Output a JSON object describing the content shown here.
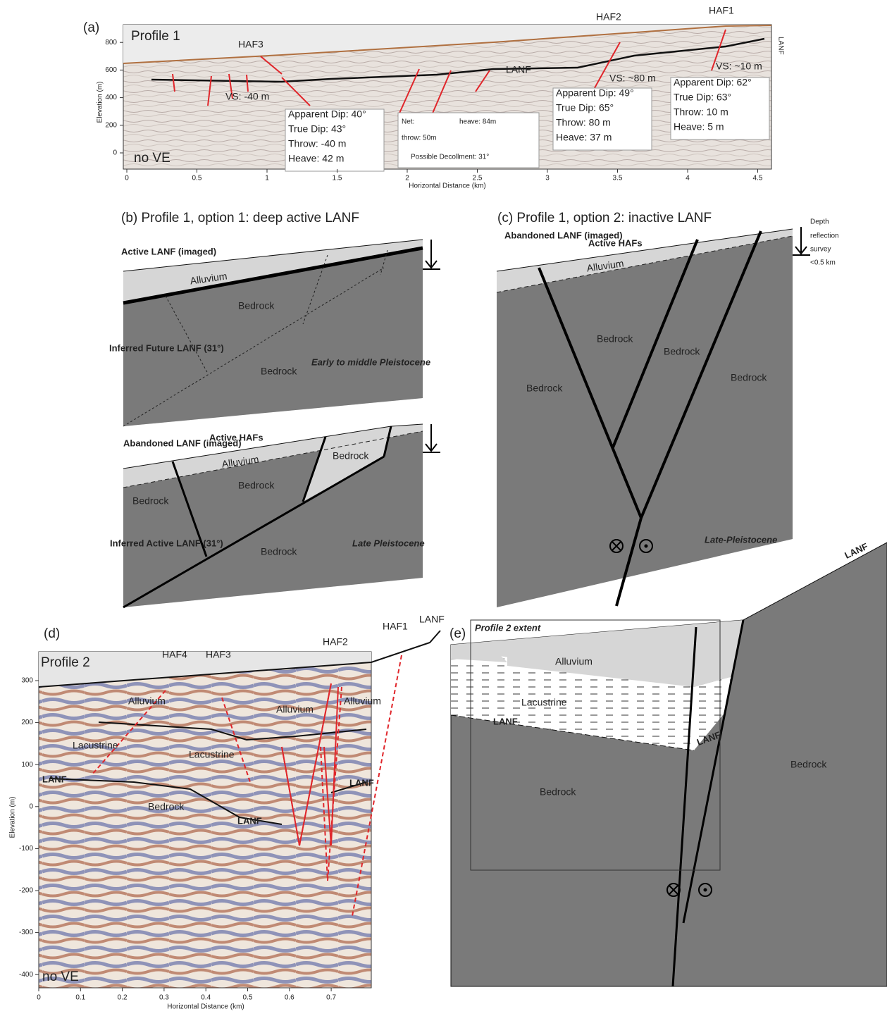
{
  "panel_a": {
    "label": "(a)",
    "profile": "Profile 1",
    "ve_note": "no VE",
    "y_axis_title": "Elevation (m)",
    "x_axis_title": "Horizontal Distance (km)",
    "yticks": [
      0,
      200,
      400,
      600,
      800
    ],
    "xticks": [
      0,
      0.5,
      1,
      1.5,
      2,
      2.5,
      3,
      3.5,
      4,
      4.5
    ],
    "faults": [
      "HAF3",
      "HAF2",
      "HAF1"
    ],
    "lanf": "LANF",
    "lanf_side": "LANF",
    "vs": [
      "VS: -40 m",
      "VS: ~80 m",
      "VS: ~10 m"
    ],
    "boxes": [
      [
        "Apparent Dip: 40°",
        "True Dip: 43°",
        "Throw: -40 m",
        "Heave: 42 m"
      ],
      [
        "Apparent Dip: 49°",
        "True Dip: 65°",
        "Throw: 80 m",
        "Heave: 37 m"
      ],
      [
        "Apparent Dip: 62°",
        "True Dip: 63°",
        "Throw: 10 m",
        "Heave: 5 m"
      ]
    ],
    "net_box": {
      "net": "Net:",
      "heave": "heave: 84m",
      "throw": "throw: 50m",
      "decollement": "Possible Decollment: 31°"
    }
  },
  "panel_b": {
    "title": "(b)  Profile 1, option 1: deep active LANF",
    "top": {
      "lanf": "Active LANF (imaged)",
      "alluvium": "Alluvium",
      "bedrock_1": "Bedrock",
      "future": "Inferred Future LANF (31°)",
      "bedrock_2": "Bedrock",
      "age": "Early to middle Pleistocene"
    },
    "bottom": {
      "abandoned": "Abandoned LANF (imaged)",
      "hafs": "Active HAFs",
      "alluvium": "Alluvium",
      "bedrock_1": "Bedrock",
      "bedrock_2": "Bedrock",
      "bedrock_3": "Bedrock",
      "active": "Inferred Active LANF (31°)",
      "bedrock_4": "Bedrock",
      "age": "Late Pleistocene"
    }
  },
  "panel_c": {
    "title": "(c)  Profile 1, option 2: inactive LANF",
    "depth_note": [
      "Depth",
      "reflection",
      "survey",
      "<0.5 km"
    ],
    "abandoned": "Abandoned LANF (imaged)",
    "hafs": "Active HAFs",
    "alluvium": "Alluvium",
    "bedrock": [
      "Bedrock",
      "Bedrock",
      "Bedrock",
      "Bedrock"
    ],
    "age": "Late-Pleistocene"
  },
  "panel_d": {
    "label": "(d)",
    "profile": "Profile 2",
    "ve_note": "no VE",
    "y_axis_title": "Elevation (m)",
    "x_axis_title": "Horizontal Distance (km)",
    "yticks": [
      300,
      200,
      100,
      0,
      -100,
      -200,
      -300,
      -400
    ],
    "xticks": [
      0,
      0.1,
      0.2,
      0.3,
      0.4,
      0.5,
      0.6,
      0.7
    ],
    "faults": [
      "HAF4",
      "HAF3",
      "HAF2",
      "HAF1",
      "LANF"
    ],
    "alluvium": [
      "Alluvium",
      "Alluvium",
      "Alluvium"
    ],
    "lacustrine": [
      "Lacustrine",
      "Lacustrine"
    ],
    "bedrock": "Bedrock",
    "lanf_labels": [
      "LANF",
      "LANF",
      "LANF"
    ]
  },
  "panel_e": {
    "label": "(e)",
    "extent": "Profile 2 extent",
    "alluvium": "Alluvium",
    "lacustrine": "Lacustrine",
    "lanf": [
      "LANF",
      "LANF",
      "LANF"
    ],
    "bedrock": [
      "Bedrock",
      "Bedrock"
    ]
  }
}
